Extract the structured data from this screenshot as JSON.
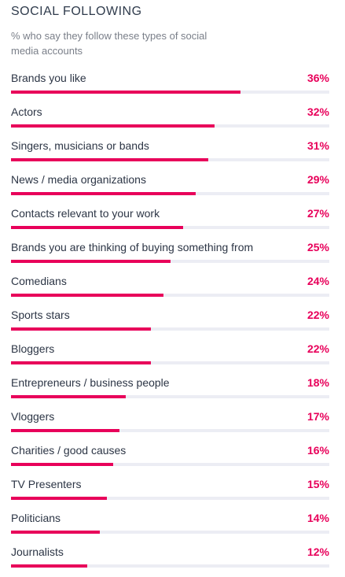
{
  "title": "SOCIAL FOLLOWING",
  "subtitle": "% who say they follow these types of social media accounts",
  "colors": {
    "accent": "#e8005a",
    "track": "#ecedf4",
    "title": "#2f3b4c",
    "subtitle": "#7a7f89",
    "label": "#2c3545"
  },
  "chart_data": {
    "type": "bar",
    "orientation": "horizontal",
    "title": "SOCIAL FOLLOWING",
    "subtitle": "% who say they follow these types of social media accounts",
    "xlim": [
      0,
      50
    ],
    "categories": [
      "Brands you like",
      "Actors",
      "Singers, musicians or bands",
      "News / media organizations",
      "Contacts relevant to your work",
      "Brands you are thinking of buying something from",
      "Comedians",
      "Sports stars",
      "Bloggers",
      "Entrepreneurs / business people",
      "Vloggers",
      "Charities / good causes",
      "TV Presenters",
      "Politicians",
      "Journalists"
    ],
    "values": [
      36,
      32,
      31,
      29,
      27,
      25,
      24,
      22,
      22,
      18,
      17,
      16,
      15,
      14,
      12
    ],
    "value_labels": [
      "36%",
      "32%",
      "31%",
      "29%",
      "27%",
      "25%",
      "24%",
      "22%",
      "22%",
      "18%",
      "17%",
      "16%",
      "15%",
      "14%",
      "12%"
    ]
  }
}
